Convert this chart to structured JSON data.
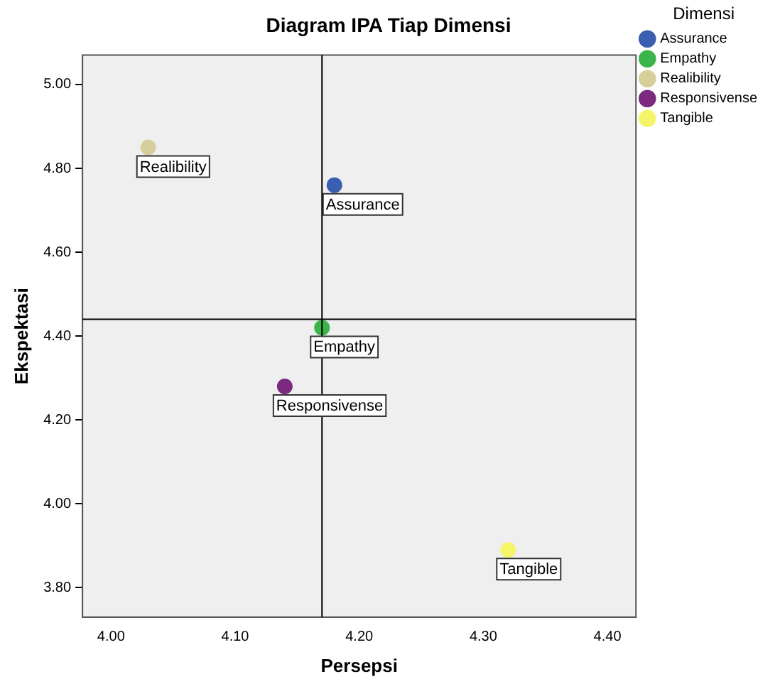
{
  "chart_data": {
    "type": "scatter",
    "title": "Diagram IPA Tiap Dimensi",
    "xlabel": "Persepsi",
    "ylabel": "Ekspektasi",
    "legend_title": "Dimensi",
    "legend": "right",
    "marker": "circle",
    "grid": false,
    "xlim": [
      3.977,
      4.423
    ],
    "xticks": [
      {
        "value": 4,
        "label": "4.00"
      },
      {
        "value": 4.1,
        "label": "4.10"
      },
      {
        "value": 4.2,
        "label": "4.20"
      },
      {
        "value": 4.3,
        "label": "4.30"
      },
      {
        "value": 4.4,
        "label": "4.40"
      }
    ],
    "ylim": [
      3.73,
      5.07
    ],
    "yticks": [
      {
        "value": 3.8,
        "label": "3.80"
      },
      {
        "value": 4,
        "label": "4.00"
      },
      {
        "value": 4.2,
        "label": "4.20"
      },
      {
        "value": 4.4,
        "label": "4.40"
      },
      {
        "value": 4.6,
        "label": "4.60"
      },
      {
        "value": 4.8,
        "label": "4.80"
      },
      {
        "value": 5,
        "label": "5.00"
      }
    ],
    "series": [
      {
        "name": "Assurance",
        "color": "#3a5fb0",
        "x": [
          4.18
        ],
        "values": [
          4.76
        ]
      },
      {
        "name": "Empathy",
        "color": "#3cb44a",
        "x": [
          4.17
        ],
        "values": [
          4.42
        ]
      },
      {
        "name": "Realibility",
        "color": "#d6cf9c",
        "x": [
          4.03
        ],
        "values": [
          4.85
        ]
      },
      {
        "name": "Responsivense",
        "color": "#7b2a7f",
        "x": [
          4.14
        ],
        "values": [
          4.28
        ]
      },
      {
        "name": "Tangible",
        "color": "#f5f56a",
        "x": [
          4.32
        ],
        "values": [
          3.89
        ]
      }
    ],
    "ref_lines": [
      {
        "axis": "x",
        "value": 4.17,
        "color": "#000000"
      },
      {
        "axis": "y",
        "value": 4.44,
        "color": "#000000"
      }
    ],
    "annotations": [
      {
        "text": "Assurance",
        "x": 4.18,
        "y": 4.76
      },
      {
        "text": "Empathy",
        "x": 4.17,
        "y": 4.42
      },
      {
        "text": "Realibility",
        "x": 4.03,
        "y": 4.85
      },
      {
        "text": "Responsivense",
        "x": 4.14,
        "y": 4.28
      },
      {
        "text": "Tangible",
        "x": 4.32,
        "y": 3.89
      }
    ]
  }
}
